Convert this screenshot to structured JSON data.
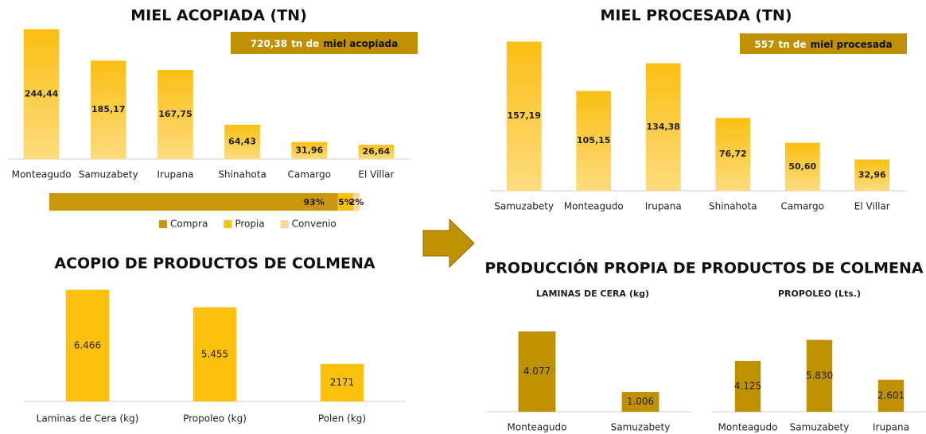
{
  "section_title": "PRODUCCIÓN  PROPIA DE PRODUCTOS DE COLMENA",
  "chart_data": [
    {
      "type": "bar",
      "title": "MIEL ACOPIADA  (TN)",
      "annotation": [
        "720,38",
        "tn de",
        "miel acopiada"
      ],
      "categories": [
        "Monteagudo",
        "Samuzabety",
        "Irupana",
        "Shinahota",
        "Camargo",
        "El Villar"
      ],
      "values": [
        244.44,
        185.17,
        167.75,
        64.43,
        31.96,
        26.64
      ],
      "value_labels": [
        "244,44",
        "185,17",
        "167,75",
        "64,43",
        "31,96",
        "26,64"
      ],
      "color": "#fbbf14",
      "ylim": [
        0,
        250
      ]
    },
    {
      "type": "stacked_barh",
      "xlim": [
        0,
        100
      ],
      "legend": "bottom",
      "series": [
        {
          "name": "Compra",
          "color": "#c9960c",
          "values": [
            93
          ],
          "value_labels": [
            "93%"
          ]
        },
        {
          "name": "Propia",
          "color": "#fdc010",
          "values": [
            5
          ],
          "value_labels": [
            "5%"
          ]
        },
        {
          "name": "Convenio",
          "color": "#fbd89a",
          "values": [
            2
          ],
          "value_labels": [
            "2%"
          ]
        }
      ]
    },
    {
      "type": "bar",
      "title": "MIEL PROCESADA (TN)",
      "annotation": [
        "557",
        "tn de",
        "miel procesada"
      ],
      "categories": [
        "Samuzabety",
        "Monteagudo",
        "Irupana",
        "Shinahota",
        "Camargo",
        "El Villar"
      ],
      "values": [
        157.19,
        105.15,
        134.38,
        76.72,
        50.6,
        32.96
      ],
      "value_labels": [
        "157,19",
        "105,15",
        "134,38",
        "76,72",
        "50,60",
        "32,96"
      ],
      "color": "#fbbf14",
      "ylim": [
        0,
        160
      ]
    },
    {
      "type": "bar",
      "title": "ACOPIO DE PRODUCTOS DE COLMENA",
      "categories": [
        "Laminas de Cera (kg)",
        "Propoleo (kg)",
        "Polen (kg)"
      ],
      "values": [
        6466,
        5455,
        2171
      ],
      "value_labels": [
        "6.466",
        "5.455",
        "2171"
      ],
      "color": "#fcc00e",
      "ylim": [
        0,
        7000
      ]
    },
    {
      "type": "bar",
      "title": "LAMINAS DE CERA (kg)",
      "categories": [
        "Monteagudo",
        "Samuzabety"
      ],
      "values": [
        4077,
        1006
      ],
      "value_labels": [
        "4.077",
        "1.006"
      ],
      "color": "#bf9000",
      "ylim": [
        0,
        5000
      ]
    },
    {
      "type": "bar",
      "title": "PROPOLEO (Lts.)",
      "categories": [
        "Monteagudo",
        "Samuzabety",
        "Irupana"
      ],
      "values": [
        4125,
        5830,
        2601
      ],
      "value_labels": [
        "4.125",
        "5.830",
        "2.601"
      ],
      "color": "#bf9000",
      "ylim": [
        0,
        6000
      ]
    }
  ]
}
